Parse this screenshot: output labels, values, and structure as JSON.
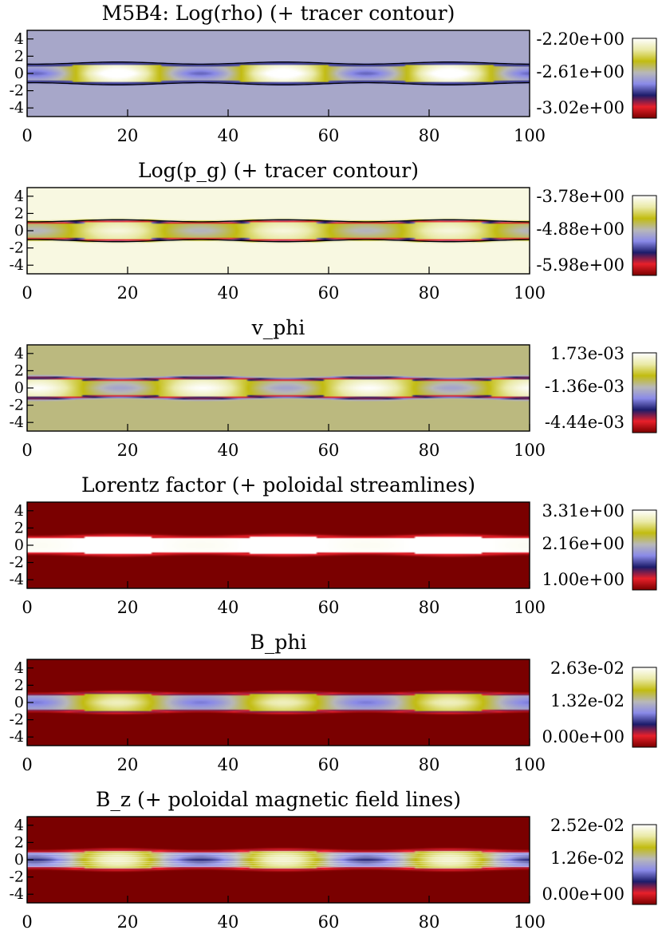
{
  "chart_data": [
    {
      "type": "heatmap",
      "title": "M5B4: Log(rho) (+ tracer contour)",
      "x_ticks": [
        "0",
        "20",
        "40",
        "60",
        "80",
        "100"
      ],
      "y_ticks": [
        "4",
        "2",
        "0",
        "-2",
        "-4"
      ],
      "xlim": [
        0,
        100
      ],
      "ylim": [
        -5,
        5
      ],
      "colorbar": {
        "max": "-2.20e+00",
        "mid": "-2.61e+00",
        "min": "-3.02e+00"
      },
      "field": {
        "background": 0.52,
        "jet_halfwidth": 1.05,
        "core": 0.72,
        "amplitude": 0.35,
        "period": 33,
        "phase": 18,
        "edge": 0.3
      },
      "overlay": "tracer-contour"
    },
    {
      "type": "heatmap",
      "title": "Log(p_g) (+ tracer contour)",
      "x_ticks": [
        "0",
        "20",
        "40",
        "60",
        "80",
        "100"
      ],
      "y_ticks": [
        "4",
        "2",
        "0",
        "-2",
        "-4"
      ],
      "xlim": [
        0,
        100
      ],
      "ylim": [
        -5,
        5
      ],
      "colorbar": {
        "max": "-3.78e+00",
        "mid": "-4.88e+00",
        "min": "-5.98e+00"
      },
      "field": {
        "background": 0.95,
        "jet_halfwidth": 1.0,
        "core": 0.75,
        "amplitude": 0.2,
        "period": 33,
        "phase": 18,
        "edge": 0.12
      },
      "overlay": "tracer-contour"
    },
    {
      "type": "heatmap",
      "title": "v_phi",
      "x_ticks": [
        "0",
        "20",
        "40",
        "60",
        "80",
        "100"
      ],
      "y_ticks": [
        "4",
        "2",
        "0",
        "-2",
        "-4"
      ],
      "xlim": [
        0,
        100
      ],
      "ylim": [
        -5,
        5
      ],
      "colorbar": {
        "max": "1.73e-03",
        "mid": "-1.36e-03",
        "min": "-4.44e-03"
      },
      "field": {
        "background": 0.62,
        "jet_halfwidth": 1.05,
        "core": 0.75,
        "amplitude": 0.25,
        "period": 33,
        "phase": 2,
        "edge": 0.15
      },
      "overlay": "none"
    },
    {
      "type": "heatmap",
      "title": "Lorentz factor (+ poloidal streamlines)",
      "x_ticks": [
        "0",
        "20",
        "40",
        "60",
        "80",
        "100"
      ],
      "y_ticks": [
        "4",
        "2",
        "0",
        "-2",
        "-4"
      ],
      "xlim": [
        0,
        100
      ],
      "ylim": [
        -5,
        5
      ],
      "colorbar": {
        "max": "3.31e+00",
        "mid": "2.16e+00",
        "min": "1.00e+00"
      },
      "field": {
        "background": 0.0,
        "jet_halfwidth": 1.0,
        "core": 1.0,
        "amplitude": 0.02,
        "period": 33,
        "phase": 18,
        "edge": 0.15
      },
      "overlay": "none"
    },
    {
      "type": "heatmap",
      "title": "B_phi",
      "x_ticks": [
        "0",
        "20",
        "40",
        "60",
        "80",
        "100"
      ],
      "y_ticks": [
        "4",
        "2",
        "0",
        "-2",
        "-4"
      ],
      "xlim": [
        0,
        100
      ],
      "ylim": [
        -5,
        5
      ],
      "colorbar": {
        "max": "2.63e-02",
        "mid": "1.32e-02",
        "min": "0.00e+00"
      },
      "field": {
        "background": 0.0,
        "jet_halfwidth": 1.0,
        "core": 0.65,
        "amplitude": 0.25,
        "period": 33,
        "phase": 18,
        "edge": 0.22
      },
      "overlay": "none"
    },
    {
      "type": "heatmap",
      "title": "B_z (+ poloidal magnetic field lines)",
      "x_ticks": [
        "0",
        "20",
        "40",
        "60",
        "80",
        "100"
      ],
      "y_ticks": [
        "4",
        "2",
        "0",
        "-2",
        "-4"
      ],
      "xlim": [
        0,
        100
      ],
      "ylim": [
        -5,
        5
      ],
      "colorbar": {
        "max": "2.52e-02",
        "mid": "1.26e-02",
        "min": "0.00e+00"
      },
      "field": {
        "background": 0.0,
        "jet_halfwidth": 1.0,
        "core": 0.62,
        "amplitude": 0.32,
        "period": 33,
        "phase": 18,
        "edge": 0.18
      },
      "overlay": "field-lines"
    }
  ],
  "colormap": {
    "stops": [
      "#7a0000",
      "#e8202a",
      "#1c1c6a",
      "#8a8ae8",
      "#b8b8b8",
      "#c2bc10",
      "#eaeaa8",
      "#ffffff"
    ]
  }
}
